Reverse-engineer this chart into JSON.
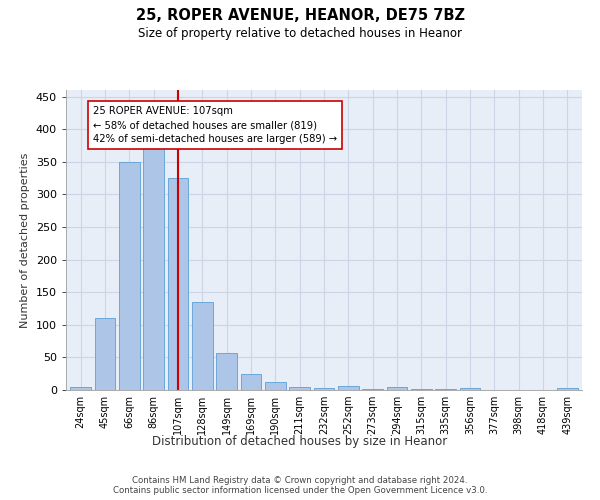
{
  "title1": "25, ROPER AVENUE, HEANOR, DE75 7BZ",
  "title2": "Size of property relative to detached houses in Heanor",
  "xlabel": "Distribution of detached houses by size in Heanor",
  "ylabel": "Number of detached properties",
  "categories": [
    "24sqm",
    "45sqm",
    "66sqm",
    "86sqm",
    "107sqm",
    "128sqm",
    "149sqm",
    "169sqm",
    "190sqm",
    "211sqm",
    "232sqm",
    "252sqm",
    "273sqm",
    "294sqm",
    "315sqm",
    "335sqm",
    "356sqm",
    "377sqm",
    "398sqm",
    "418sqm",
    "439sqm"
  ],
  "values": [
    5,
    110,
    350,
    375,
    325,
    135,
    57,
    25,
    13,
    5,
    3,
    6,
    2,
    4,
    2,
    2,
    3,
    0,
    0,
    0,
    3
  ],
  "bar_color": "#adc6e8",
  "bar_edge_color": "#5a9fd4",
  "highlight_index": 4,
  "highlight_line_color": "#cc0000",
  "annotation_text": "25 ROPER AVENUE: 107sqm\n← 58% of detached houses are smaller (819)\n42% of semi-detached houses are larger (589) →",
  "annotation_box_color": "#ffffff",
  "annotation_box_edge": "#cc0000",
  "grid_color": "#ccd5e5",
  "background_color": "#e8eef8",
  "ylim": [
    0,
    460
  ],
  "yticks": [
    0,
    50,
    100,
    150,
    200,
    250,
    300,
    350,
    400,
    450
  ],
  "footer_line1": "Contains HM Land Registry data © Crown copyright and database right 2024.",
  "footer_line2": "Contains public sector information licensed under the Open Government Licence v3.0."
}
